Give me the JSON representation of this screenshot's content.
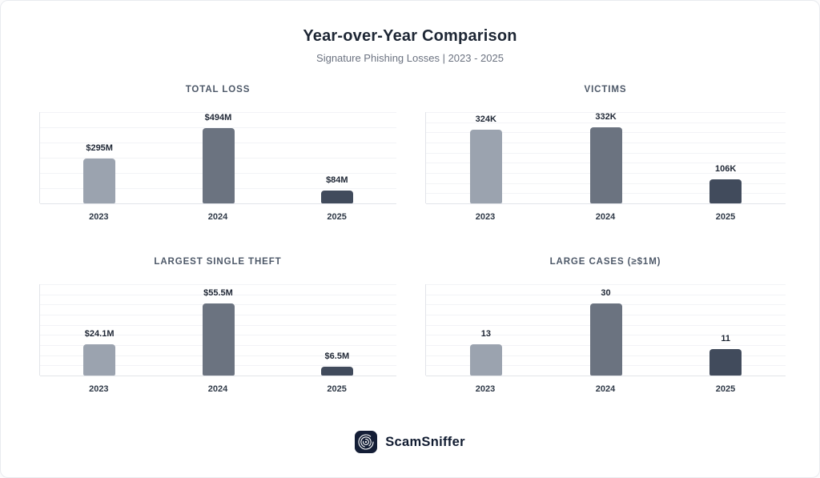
{
  "header": {
    "title": "Year-over-Year Comparison",
    "subtitle": "Signature Phishing Losses | 2023 - 2025"
  },
  "chart_data": [
    {
      "type": "bar",
      "title": "TOTAL LOSS",
      "categories": [
        "2023",
        "2024",
        "2025"
      ],
      "values": [
        295,
        494,
        84
      ],
      "value_labels": [
        "$295M",
        "$494M",
        "$84M"
      ],
      "ylim": [
        0,
        600
      ],
      "grid_intervals": 6,
      "legend": "none"
    },
    {
      "type": "bar",
      "title": "VICTIMS",
      "categories": [
        "2023",
        "2024",
        "2025"
      ],
      "values": [
        324,
        332,
        106
      ],
      "value_labels": [
        "324K",
        "332K",
        "106K"
      ],
      "ylim": [
        0,
        400
      ],
      "grid_intervals": 9,
      "legend": "none"
    },
    {
      "type": "bar",
      "title": "LARGEST SINGLE THEFT",
      "categories": [
        "2023",
        "2024",
        "2025"
      ],
      "values": [
        24.1,
        55.5,
        6.5
      ],
      "value_labels": [
        "$24.1M",
        "$55.5M",
        "$6.5M"
      ],
      "ylim": [
        0,
        70
      ],
      "grid_intervals": 9,
      "legend": "none"
    },
    {
      "type": "bar",
      "title": "LARGE CASES (≥$1M)",
      "categories": [
        "2023",
        "2024",
        "2025"
      ],
      "values": [
        13,
        30,
        11
      ],
      "value_labels": [
        "13",
        "30",
        "11"
      ],
      "ylim": [
        0,
        38
      ],
      "grid_intervals": 9,
      "legend": "none"
    }
  ],
  "colors": {
    "bars_by_year": [
      "#9ba3af",
      "#6b7380",
      "#414b5c"
    ],
    "gridline": "#f2f3f6",
    "axis_line": "#e2e4e9",
    "title_text": "#1d2634",
    "subtitle_text": "#6b7280",
    "chart_title_text": "#4d5868",
    "value_label_text": "#1f2735",
    "year_label_text": "#2f3947",
    "brand_navy": "#101b30",
    "logo_badge_bg": "#141e36"
  },
  "footer": {
    "brand": "ScamSniffer",
    "logo_icon": "scamsniffer-spiral-icon"
  }
}
